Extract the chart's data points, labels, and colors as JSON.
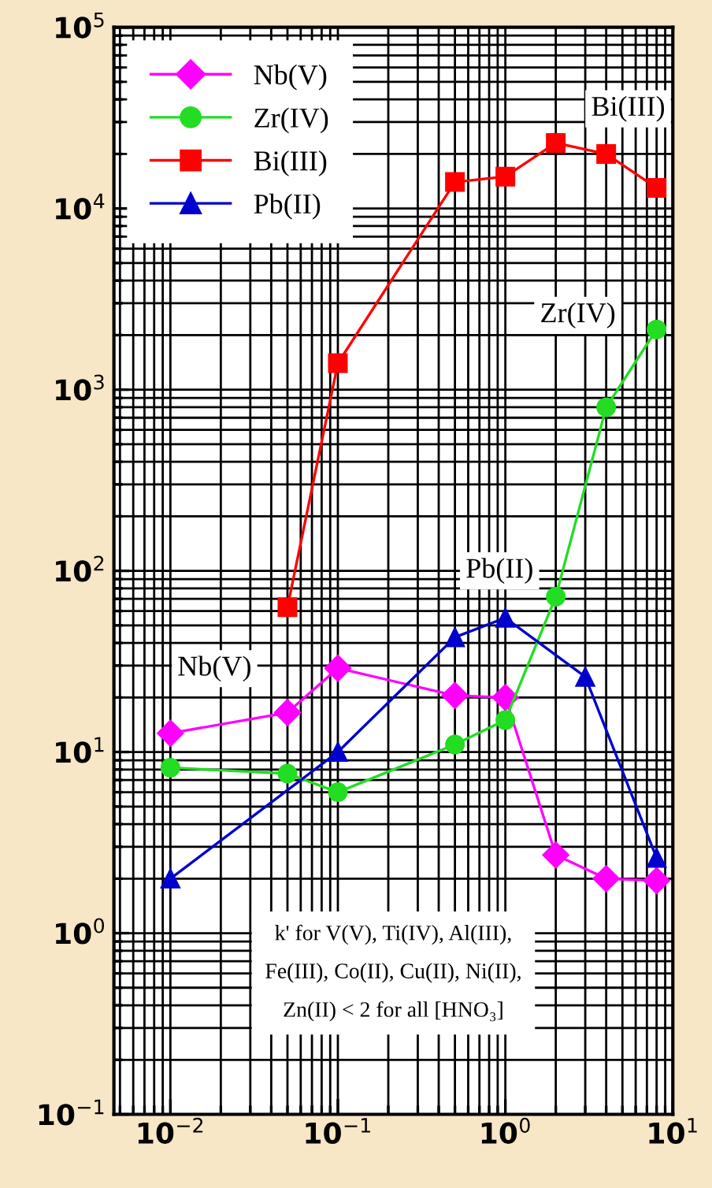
{
  "chart_data": {
    "type": "line",
    "log": "xy",
    "grid": true,
    "legend": "top left",
    "line_style": "solid",
    "xlim": [
      0.0046,
      10
    ],
    "ylim": [
      0.1,
      100000
    ],
    "xticks": [
      {
        "value": 0.01,
        "label": "10$^{−2}$"
      },
      {
        "value": 0.1,
        "label": "10$^{−1}$"
      },
      {
        "value": 1,
        "label": "10$^{0}$"
      },
      {
        "value": 10,
        "label": "10$^{1}$"
      }
    ],
    "yticks": [
      {
        "value": 0.1,
        "label": "10$^{−1}$"
      },
      {
        "value": 1,
        "label": "10$^{0}$"
      },
      {
        "value": 10,
        "label": "10$^{1}$"
      },
      {
        "value": 100,
        "label": "10$^{2}$"
      },
      {
        "value": 1000,
        "label": "10$^{3}$"
      },
      {
        "value": 10000,
        "label": "10$^{4}$"
      },
      {
        "value": 100000,
        "label": "10$^{5}$"
      }
    ],
    "series": [
      {
        "name": "Nb(V)",
        "color": "#ff00ff",
        "marker": "diamond",
        "x": [
          0.01,
          0.05,
          0.1,
          0.5,
          1,
          2,
          4,
          8
        ],
        "values": [
          12.7,
          16.5,
          29,
          20.5,
          20,
          2.7,
          2.0,
          1.95
        ]
      },
      {
        "name": "Zr(IV)",
        "color": "#22dd22",
        "marker": "circle",
        "x": [
          0.01,
          0.05,
          0.1,
          0.5,
          1,
          2,
          4,
          8
        ],
        "values": [
          8.2,
          7.6,
          6,
          11,
          15,
          72,
          800,
          2150
        ]
      },
      {
        "name": "Bi(III)",
        "color": "#ff0000",
        "marker": "square",
        "x": [
          0.05,
          0.1,
          0.5,
          1,
          2,
          4,
          8
        ],
        "values": [
          63,
          1400,
          14000,
          15000,
          23000,
          20000,
          13000
        ]
      },
      {
        "name": "Pb(II)",
        "color": "#0000cc",
        "marker": "triangle",
        "x": [
          0.01,
          0.1,
          0.5,
          1,
          3,
          8
        ],
        "values": [
          2.0,
          10,
          43,
          55,
          26,
          2.6
        ]
      }
    ],
    "annotations": [
      "Bi(III)",
      "Zr(IV)",
      "Pb(II)",
      "Nb(V)",
      "k' for V(V), Ti(IV), Al(III),\nFe(III), Co(II), Cu(II), Ni(II),\nZn(II) < 2 for all [HNO₃]"
    ]
  }
}
